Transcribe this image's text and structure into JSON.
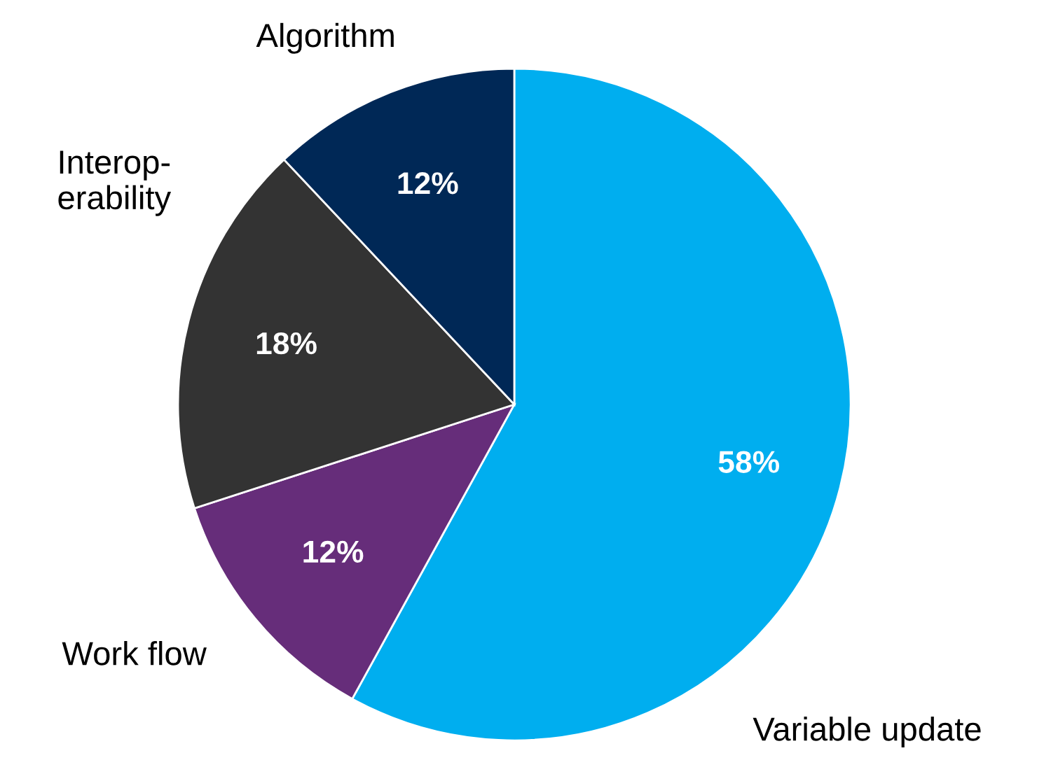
{
  "chart_data": {
    "type": "pie",
    "categories": [
      "Variable update",
      "Work flow",
      "Interop-\nerability",
      "Algorithm"
    ],
    "values": [
      58,
      12,
      18,
      12
    ],
    "colors": [
      "#00aeef",
      "#662d7a",
      "#333333",
      "#002856"
    ],
    "value_labels": [
      "58%",
      "12%",
      "18%",
      "12%"
    ]
  }
}
